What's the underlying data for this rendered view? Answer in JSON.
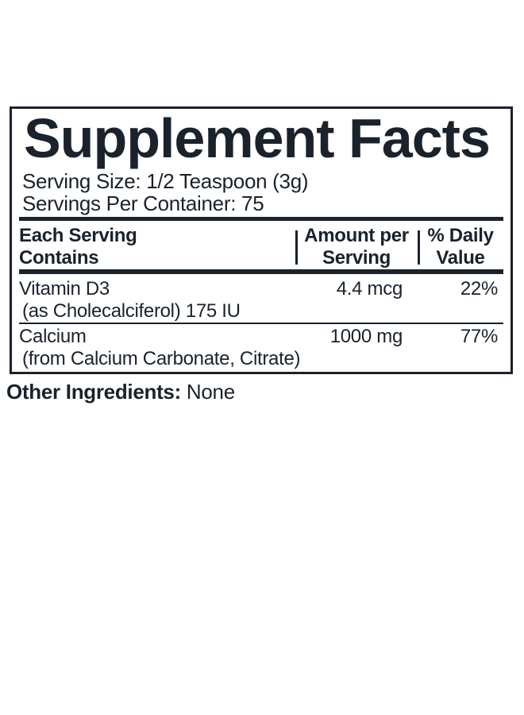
{
  "colors": {
    "ink": "#1a222c",
    "background": "#ffffff"
  },
  "label": {
    "title": "Supplement Facts",
    "serving_size": "Serving Size: 1/2 Teaspoon (3g)",
    "servings_per_container": "Servings Per Container: 75",
    "header": {
      "col1_line1": "Each Serving",
      "col1_line2": "Contains",
      "col2_line1": "Amount per",
      "col2_line2": "Serving",
      "col3_line1": "% Daily",
      "col3_line2": "Value"
    },
    "rows": [
      {
        "name": "Vitamin D3",
        "detail": "(as Cholecalciferol) 175 IU",
        "amount": "4.4 mcg",
        "daily_value": "22%"
      },
      {
        "name": "Calcium",
        "detail": "(from Calcium Carbonate, Citrate)",
        "amount": "1000 mg",
        "daily_value": "77%"
      }
    ],
    "other_ingredients_label": "Other Ingredients:",
    "other_ingredients_value": "None"
  }
}
